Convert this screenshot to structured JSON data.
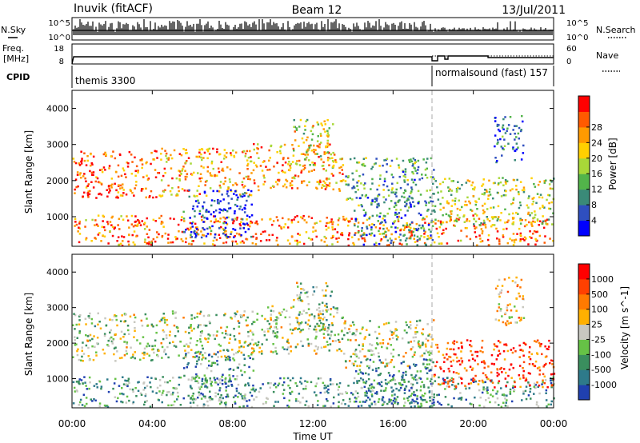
{
  "header": {
    "station": "Inuvik (fitACF)",
    "beam": "Beam 12",
    "date": "13/Jul/2011"
  },
  "panels": {
    "nsky": {
      "label": "N.Sky",
      "right_label": "N.Search",
      "left_ticks": [
        "10^5",
        "10^0"
      ],
      "right_ticks": [
        "10^5",
        "10^0"
      ]
    },
    "freq": {
      "label_line1": "Freq.",
      "label_line2": "[MHz]",
      "right_label": "Nave",
      "left_ticks": [
        "18",
        "8"
      ],
      "right_ticks": [
        "60",
        "0"
      ]
    },
    "cpid": {
      "label": "CPID",
      "segments": [
        {
          "name": "themis 3300",
          "start_hour": 0,
          "end_hour": 18
        },
        {
          "name": "normalsound (fast) 157",
          "start_hour": 18,
          "end_hour": 24
        }
      ]
    }
  },
  "chart_data": [
    {
      "type": "heatmap",
      "name": "power",
      "ylabel": "Slant Range [km]",
      "xlabel": "Time UT",
      "y_ticks": [
        1000,
        2000,
        3000,
        4000
      ],
      "ylim": [
        180,
        4500
      ],
      "x_ticks": [
        "00:00",
        "04:00",
        "08:00",
        "12:00",
        "16:00",
        "20:00",
        "00:00"
      ],
      "xlim_hours": [
        0,
        24
      ],
      "colorbar": {
        "label": "Power [dB]",
        "ticks": [
          "4",
          "8",
          "12",
          "16",
          "20",
          "24",
          "28"
        ],
        "colors": [
          "#0000ff",
          "#2f4fbf",
          "#3a8a78",
          "#52b44a",
          "#a8d838",
          "#ffd000",
          "#ff9a00",
          "#ff5a00",
          "#ff0000"
        ]
      },
      "bands": [
        {
          "start_hour": 0.0,
          "end_hour": 24.0,
          "range_km": 400,
          "level": 0.78
        },
        {
          "start_hour": 0.0,
          "end_hour": 4.3,
          "range_km": 2200,
          "level": 0.85
        },
        {
          "start_hour": 4.3,
          "end_hour": 9.0,
          "range_km": 2250,
          "level": 0.7
        },
        {
          "start_hour": 9.0,
          "end_hour": 13.5,
          "range_km": 2400,
          "level": 0.72
        },
        {
          "start_hour": 13.5,
          "end_hour": 18.0,
          "range_km": 2000,
          "level": 0.35
        },
        {
          "start_hour": 18.0,
          "end_hour": 24.0,
          "range_km": 1450,
          "level": 0.5
        },
        {
          "start_hour": 11.0,
          "end_hour": 13.0,
          "range_km": 3050,
          "level": 0.55
        },
        {
          "start_hour": 21.0,
          "end_hour": 22.5,
          "range_km": 3200,
          "level": 0.2
        },
        {
          "start_hour": 5.5,
          "end_hour": 9.0,
          "range_km": 1100,
          "level": 0.12
        },
        {
          "start_hour": 14.0,
          "end_hour": 18.0,
          "range_km": 900,
          "level": 0.25
        }
      ]
    },
    {
      "type": "heatmap",
      "name": "velocity",
      "ylabel": "Slant Range [km]",
      "xlabel": "Time UT",
      "y_ticks": [
        1000,
        2000,
        3000,
        4000
      ],
      "ylim": [
        180,
        4500
      ],
      "x_ticks": [
        "00:00",
        "04:00",
        "08:00",
        "12:00",
        "16:00",
        "20:00",
        "00:00"
      ],
      "xlim_hours": [
        0,
        24
      ],
      "colorbar": {
        "label": "Velocity [m s^-1]",
        "ticks": [
          "1000",
          "500",
          "100",
          "25",
          "-25",
          "-100",
          "-500",
          "-1000"
        ],
        "colors": [
          "#2040b0",
          "#2e7a8a",
          "#3a8e5e",
          "#66c246",
          "#c8c8c0",
          "#ffb000",
          "#ff7a00",
          "#ff4000",
          "#ff0000"
        ]
      },
      "bands": [
        {
          "start_hour": 0.0,
          "end_hour": 24.0,
          "range_km": 400,
          "level": 0.3
        },
        {
          "start_hour": 0.0,
          "end_hour": 4.3,
          "range_km": 2200,
          "level": 0.45
        },
        {
          "start_hour": 4.3,
          "end_hour": 9.0,
          "range_km": 2250,
          "level": 0.45
        },
        {
          "start_hour": 9.0,
          "end_hour": 13.5,
          "range_km": 2400,
          "level": 0.45
        },
        {
          "start_hour": 13.5,
          "end_hour": 18.0,
          "range_km": 2000,
          "level": 0.5
        },
        {
          "start_hour": 18.0,
          "end_hour": 24.0,
          "range_km": 1450,
          "level": 0.85
        },
        {
          "start_hour": 11.0,
          "end_hour": 13.0,
          "range_km": 3050,
          "level": 0.45
        },
        {
          "start_hour": 21.0,
          "end_hour": 22.5,
          "range_km": 3200,
          "level": 0.6
        },
        {
          "start_hour": 5.5,
          "end_hour": 9.0,
          "range_km": 1100,
          "level": 0.25
        },
        {
          "start_hour": 14.0,
          "end_hour": 18.0,
          "range_km": 900,
          "level": 0.2
        }
      ]
    }
  ]
}
